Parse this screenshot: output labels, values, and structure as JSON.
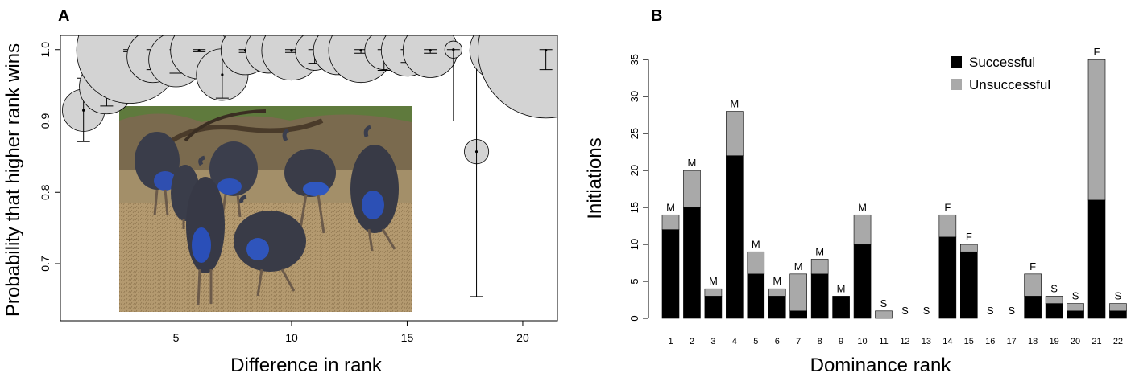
{
  "chart_data": [
    {
      "panel": "A",
      "type": "scatter",
      "xlabel": "Difference in rank",
      "ylabel": "Probability that higher rank wins",
      "xlim": [
        0,
        21.5
      ],
      "ylim": [
        0.62,
        1.02
      ],
      "x_ticks": [
        5,
        10,
        15,
        20
      ],
      "y_ticks": [
        0.7,
        0.8,
        0.9,
        1.0
      ],
      "y_tick_labels": [
        "0.7",
        "0.8",
        "0.9",
        "1.0"
      ],
      "grid": false,
      "points": [
        {
          "x": 1,
          "y": 0.915,
          "lo": 0.871,
          "hi": 0.96,
          "n": 6
        },
        {
          "x": 2,
          "y": 0.948,
          "lo": 0.921,
          "hi": 0.975,
          "n": 10
        },
        {
          "x": 3,
          "y": 0.999,
          "lo": 0.997,
          "hi": 1.0,
          "n": 38
        },
        {
          "x": 4,
          "y": 0.99,
          "lo": 0.972,
          "hi": 1.0,
          "n": 9
        },
        {
          "x": 5,
          "y": 0.986,
          "lo": 0.967,
          "hi": 1.0,
          "n": 10
        },
        {
          "x": 6,
          "y": 0.999,
          "lo": 0.997,
          "hi": 1.0,
          "n": 11
        },
        {
          "x": 7,
          "y": 0.965,
          "lo": 0.932,
          "hi": 0.998,
          "n": 9
        },
        {
          "x": 8,
          "y": 0.999,
          "lo": 0.996,
          "hi": 1.0,
          "n": 8
        },
        {
          "x": 9,
          "y": 0.999,
          "lo": 0.993,
          "hi": 1.0,
          "n": 7
        },
        {
          "x": 10,
          "y": 0.999,
          "lo": 0.996,
          "hi": 1.0,
          "n": 12
        },
        {
          "x": 11,
          "y": 0.998,
          "lo": 0.981,
          "hi": 1.0,
          "n": 5
        },
        {
          "x": 12,
          "y": 0.999,
          "lo": 0.992,
          "hi": 1.0,
          "n": 8
        },
        {
          "x": 13,
          "y": 0.999,
          "lo": 0.995,
          "hi": 1.0,
          "n": 14
        },
        {
          "x": 14,
          "y": 0.999,
          "lo": 0.971,
          "hi": 1.0,
          "n": 5
        },
        {
          "x": 15,
          "y": 0.999,
          "lo": 0.982,
          "hi": 1.0,
          "n": 9
        },
        {
          "x": 16,
          "y": 0.999,
          "lo": 0.995,
          "hi": 1.0,
          "n": 10
        },
        {
          "x": 17,
          "y": 1.0,
          "lo": 0.9,
          "hi": 1.0,
          "n": 1
        },
        {
          "x": 18,
          "y": 0.857,
          "lo": 0.654,
          "hi": 1.0,
          "n": 2
        },
        {
          "x": 19,
          "y": 0.999,
          "lo": 0.974,
          "hi": 1.0,
          "n": 12
        },
        {
          "x": 20,
          "y": 0.999,
          "lo": 0.944,
          "hi": 1.0,
          "n": 10
        },
        {
          "x": 21,
          "y": 0.999,
          "lo": 0.972,
          "hi": 1.0,
          "n": 62
        }
      ]
    },
    {
      "panel": "B",
      "type": "bar",
      "stacked": true,
      "xlabel": "Dominance rank",
      "ylabel": "Initiations",
      "ylim": [
        0,
        36
      ],
      "y_ticks": [
        0,
        5,
        10,
        15,
        20,
        25,
        30,
        35
      ],
      "legend_position": "top-right",
      "categories": [
        "1",
        "2",
        "3",
        "4",
        "5",
        "6",
        "7",
        "8",
        "9",
        "10",
        "11",
        "12",
        "13",
        "14",
        "15",
        "16",
        "17",
        "18",
        "19",
        "20",
        "21",
        "22"
      ],
      "series": [
        {
          "name": "Successful",
          "color": "#000000",
          "values": [
            12,
            15,
            3,
            22,
            6,
            3,
            1,
            6,
            3,
            10,
            0,
            0,
            0,
            11,
            9,
            0,
            0,
            3,
            2,
            1,
            16,
            1
          ]
        },
        {
          "name": "Unsuccessful",
          "color": "#a9a9a9",
          "values": [
            2,
            5,
            1,
            6,
            3,
            1,
            5,
            2,
            0,
            4,
            1,
            0,
            0,
            3,
            1,
            0,
            0,
            3,
            1,
            1,
            19,
            1
          ]
        }
      ],
      "bar_labels": [
        "M",
        "M",
        "M",
        "M",
        "M",
        "M",
        "M",
        "M",
        "M",
        "M",
        "S",
        "S",
        "S",
        "F",
        "F",
        "S",
        "S",
        "F",
        "S",
        "S",
        "F",
        "S"
      ]
    }
  ],
  "panel_letters": [
    "A",
    "B"
  ]
}
